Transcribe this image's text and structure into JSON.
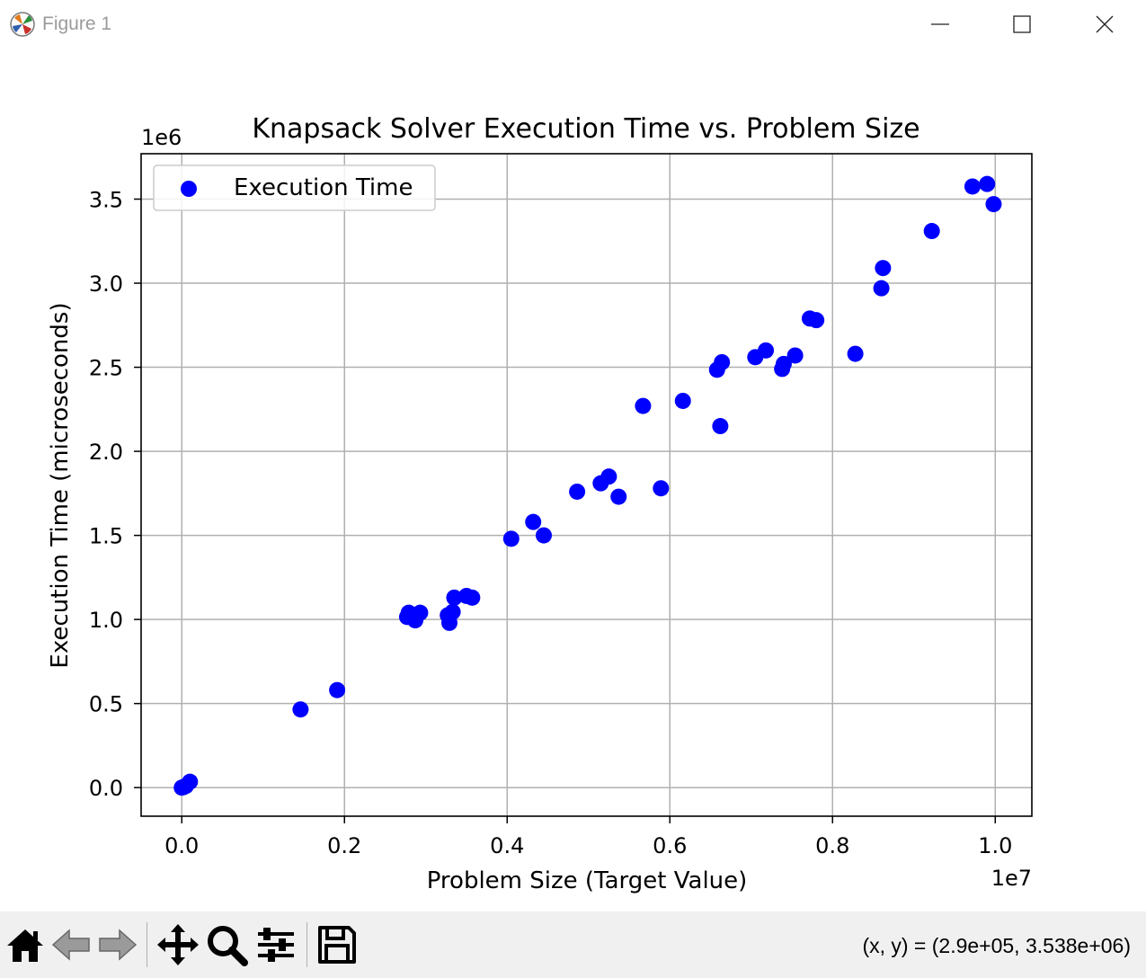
{
  "window": {
    "title": "Figure 1",
    "icon": "matplotlib-icon"
  },
  "toolbar": {
    "buttons": [
      {
        "name": "home-icon"
      },
      {
        "name": "back-arrow-icon"
      },
      {
        "name": "forward-arrow-icon"
      },
      {
        "name": "pan-move-icon"
      },
      {
        "name": "zoom-magnifier-icon"
      },
      {
        "name": "configure-subplots-icon"
      },
      {
        "name": "save-icon"
      }
    ],
    "coords_text": "(x, y) = (2.9e+05, 3.538e+06)"
  },
  "chart_data": {
    "type": "scatter",
    "title": "Knapsack Solver Execution Time vs. Problem Size",
    "xlabel": "Problem Size (Target Value)",
    "ylabel": "Execution Time (microseconds)",
    "x_offset_label": "1e7",
    "y_offset_label": "1e6",
    "xlim": [
      -0.05,
      1.045
    ],
    "ylim": [
      -0.17,
      3.77
    ],
    "xticks": [
      0.0,
      0.2,
      0.4,
      0.6,
      0.8,
      1.0
    ],
    "xtick_labels": [
      "0.0",
      "0.2",
      "0.4",
      "0.6",
      "0.8",
      "1.0"
    ],
    "yticks": [
      0.0,
      0.5,
      1.0,
      1.5,
      2.0,
      2.5,
      3.0,
      3.5
    ],
    "ytick_labels": [
      "0.0",
      "0.5",
      "1.0",
      "1.5",
      "2.0",
      "2.5",
      "3.0",
      "3.5"
    ],
    "grid": true,
    "legend_position": "upper-left",
    "series": [
      {
        "name": "Execution Time",
        "color": "#0000ff",
        "points": [
          [
            0.0,
            0.0
          ],
          [
            0.002,
            0.003
          ],
          [
            0.005,
            0.01
          ],
          [
            0.01,
            0.035
          ],
          [
            0.146,
            0.465
          ],
          [
            0.191,
            0.58
          ],
          [
            0.277,
            1.015
          ],
          [
            0.279,
            1.04
          ],
          [
            0.287,
            0.995
          ],
          [
            0.293,
            1.04
          ],
          [
            0.327,
            1.025
          ],
          [
            0.329,
            0.98
          ],
          [
            0.333,
            1.045
          ],
          [
            0.335,
            1.13
          ],
          [
            0.35,
            1.14
          ],
          [
            0.357,
            1.13
          ],
          [
            0.405,
            1.48
          ],
          [
            0.432,
            1.58
          ],
          [
            0.445,
            1.5
          ],
          [
            0.486,
            1.76
          ],
          [
            0.515,
            1.81
          ],
          [
            0.525,
            1.85
          ],
          [
            0.537,
            1.73
          ],
          [
            0.567,
            2.27
          ],
          [
            0.589,
            1.78
          ],
          [
            0.616,
            2.3
          ],
          [
            0.658,
            2.485
          ],
          [
            0.664,
            2.53
          ],
          [
            0.662,
            2.15
          ],
          [
            0.705,
            2.56
          ],
          [
            0.718,
            2.6
          ],
          [
            0.738,
            2.49
          ],
          [
            0.74,
            2.52
          ],
          [
            0.754,
            2.57
          ],
          [
            0.772,
            2.79
          ],
          [
            0.78,
            2.78
          ],
          [
            0.828,
            2.58
          ],
          [
            0.86,
            2.97
          ],
          [
            0.862,
            3.09
          ],
          [
            0.922,
            3.31
          ],
          [
            0.972,
            3.575
          ],
          [
            0.99,
            3.59
          ],
          [
            0.998,
            3.47
          ]
        ]
      }
    ]
  }
}
